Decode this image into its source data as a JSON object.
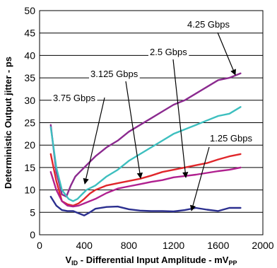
{
  "chart_data": {
    "type": "line",
    "title": "",
    "xlabel": {
      "main": "V",
      "sub": "ID",
      "rest": " - Differential Input Amplitude - mV",
      "unit_sub": "PP"
    },
    "ylabel": "Deterministic Output jitter - ps",
    "xlim": [
      0,
      2000
    ],
    "ylim": [
      0,
      50
    ],
    "xticks": [
      "0",
      "400",
      "800",
      "1200",
      "1600",
      "2000"
    ],
    "yticks": [
      "0",
      "5",
      "10",
      "15",
      "20",
      "25",
      "30",
      "35",
      "40",
      "45",
      "50"
    ],
    "grid": "horizontal",
    "series": [
      {
        "name": "4.25 Gbps",
        "color": "#8B2A8F",
        "x": [
          100,
          150,
          200,
          240,
          280,
          320,
          360,
          400,
          500,
          600,
          700,
          800,
          900,
          1000,
          1100,
          1200,
          1300,
          1400,
          1500,
          1600,
          1700,
          1800
        ],
        "y": [
          24.5,
          14,
          9,
          8.5,
          11,
          13,
          14,
          15,
          17.5,
          19.5,
          21,
          23,
          24.5,
          26,
          27.5,
          29,
          30,
          31.5,
          33,
          34.5,
          35,
          36
        ]
      },
      {
        "name": "3.75 Gbps",
        "color": "#3DBFBF",
        "x": [
          100,
          150,
          200,
          260,
          300,
          340,
          380,
          420,
          500,
          600,
          700,
          800,
          900,
          1000,
          1100,
          1200,
          1300,
          1400,
          1500,
          1600,
          1700,
          1800
        ],
        "y": [
          24,
          15,
          10,
          8,
          7.5,
          8,
          9,
          10,
          11,
          13,
          14.5,
          16.5,
          18,
          19.5,
          21,
          22.5,
          23.5,
          24.5,
          25.5,
          26.5,
          27,
          28.5
        ]
      },
      {
        "name": "3.125 Gbps",
        "color": "#E0262A",
        "x": [
          100,
          150,
          200,
          250,
          300,
          350,
          400,
          450,
          500,
          600,
          700,
          800,
          900,
          1000,
          1100,
          1200,
          1300,
          1400,
          1500,
          1600,
          1700,
          1800
        ],
        "y": [
          18,
          12,
          7.5,
          6.8,
          6.5,
          7,
          8,
          9.2,
          10,
          11,
          11.5,
          12,
          12.5,
          13.2,
          14,
          14.5,
          15,
          15.5,
          16,
          16.8,
          17.5,
          18
        ]
      },
      {
        "name": "2.5 Gbps",
        "color": "#B0208F",
        "x": [
          100,
          150,
          200,
          250,
          300,
          350,
          400,
          500,
          600,
          700,
          800,
          900,
          1000,
          1100,
          1200,
          1300,
          1400,
          1500,
          1600,
          1700,
          1800
        ],
        "y": [
          14,
          10,
          7.5,
          6.5,
          6.3,
          6.5,
          7,
          8,
          9.3,
          10.3,
          10.8,
          11.3,
          11.8,
          12.2,
          12.8,
          13.1,
          13.4,
          13.8,
          14.2,
          14.5,
          15
        ]
      },
      {
        "name": "1.25 Gbps",
        "color": "#2B2F8F",
        "x": [
          100,
          150,
          200,
          250,
          300,
          350,
          400,
          450,
          500,
          600,
          700,
          800,
          900,
          1000,
          1100,
          1200,
          1300,
          1400,
          1500,
          1600,
          1700,
          1800
        ],
        "y": [
          8.5,
          6.5,
          5.5,
          5.3,
          5.3,
          4.8,
          4.3,
          5,
          5.8,
          6.2,
          6.3,
          5.7,
          5.4,
          5.3,
          5.3,
          5.2,
          5.5,
          6,
          5.6,
          5.3,
          6,
          6
        ]
      }
    ],
    "annotations": [
      {
        "text": "4.25 Gbps",
        "series": "4.25 Gbps"
      },
      {
        "text": "2.5 Gbps",
        "series": "2.5 Gbps"
      },
      {
        "text": "3.125 Gbps",
        "series": "3.125 Gbps"
      },
      {
        "text": "3.75 Gbps",
        "series": "3.75 Gbps"
      },
      {
        "text": "1.25 Gbps",
        "series": "1.25 Gbps"
      }
    ]
  }
}
